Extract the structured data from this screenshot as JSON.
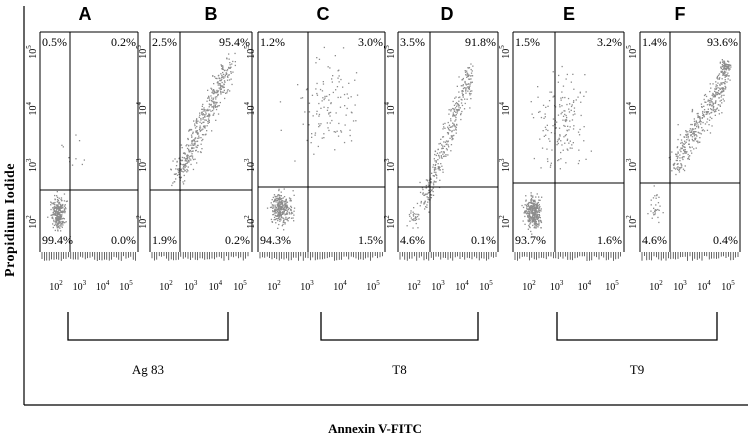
{
  "chart_data": {
    "type": "scatter",
    "ylabel": "Propidium Iodide",
    "xlabel": "Annexin V-FITC",
    "x_ticks": [
      "10",
      "10",
      "10",
      "10"
    ],
    "x_tick_exponents": [
      "2",
      "3",
      "4",
      "5"
    ],
    "y_ticks": [
      "10",
      "10",
      "10",
      "10"
    ],
    "y_tick_exponents": [
      "2",
      "3",
      "4",
      "5"
    ],
    "groups": [
      {
        "label": "Ag 83",
        "panels": [
          "A",
          "B"
        ]
      },
      {
        "label": "T8",
        "panels": [
          "C",
          "D"
        ]
      },
      {
        "label": "T9",
        "panels": [
          "E",
          "F"
        ]
      }
    ],
    "panels": [
      {
        "letter": "A",
        "quadrants": {
          "upper_left": "0.5%",
          "upper_right": "0.2%",
          "lower_left": "99.4%",
          "lower_right": "0.0%"
        }
      },
      {
        "letter": "B",
        "quadrants": {
          "upper_left": "2.5%",
          "upper_right": "95.4%",
          "lower_left": "1.9%",
          "lower_right": "0.2%"
        }
      },
      {
        "letter": "C",
        "quadrants": {
          "upper_left": "1.2%",
          "upper_right": "3.0%",
          "lower_left": "94.3%",
          "lower_right": "1.5%"
        }
      },
      {
        "letter": "D",
        "quadrants": {
          "upper_left": "3.5%",
          "upper_right": "91.8%",
          "lower_left": "4.6%",
          "lower_right": "0.1%"
        }
      },
      {
        "letter": "E",
        "quadrants": {
          "upper_left": "1.5%",
          "upper_right": "3.2%",
          "lower_left": "93.7%",
          "lower_right": "1.6%"
        }
      },
      {
        "letter": "F",
        "quadrants": {
          "upper_left": "1.4%",
          "upper_right": "93.6%",
          "lower_left": "4.6%",
          "lower_right": "0.4%"
        }
      }
    ],
    "colors": {
      "points": "#8c8c8c",
      "axes": "#000000"
    }
  }
}
